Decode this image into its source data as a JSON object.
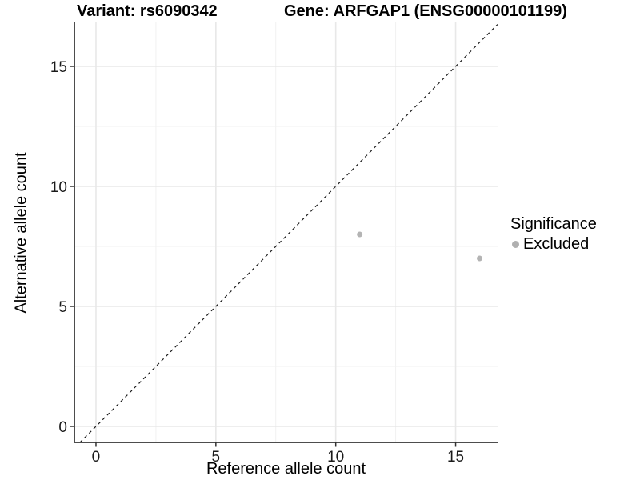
{
  "header": {
    "variant_title": "Variant: rs6090342",
    "gene_title": "Gene: ARFGAP1 (ENSG00000101199)"
  },
  "chart_data": {
    "type": "scatter",
    "title": "Variant: rs6090342   Gene: ARFGAP1 (ENSG00000101199)",
    "xlabel": "Reference allele count",
    "ylabel": "Alternative allele count",
    "xlim": [
      -0.9,
      16.75
    ],
    "ylim": [
      -0.667,
      16.833
    ],
    "xticks": [
      0,
      5,
      10,
      15
    ],
    "yticks": [
      0,
      5,
      10,
      15
    ],
    "minor_xticks": [
      2.5,
      7.5,
      12.5
    ],
    "minor_yticks": [
      2.5,
      7.5,
      12.5
    ],
    "grid": "major+minor",
    "identity_line": {
      "slope": 1,
      "intercept": 0,
      "style": "dashed",
      "color": "#1a1a1a"
    },
    "series": [
      {
        "name": "Excluded",
        "color": "#b4b4b4",
        "points": [
          {
            "x": 11,
            "y": 8
          },
          {
            "x": 16,
            "y": 7
          }
        ]
      }
    ],
    "legend": {
      "title": "Significance",
      "position": "right",
      "entries": [
        {
          "label": "Excluded",
          "color": "#b0b0b0"
        }
      ]
    }
  },
  "colors": {
    "background": "#ffffff",
    "grid_major": "#e8e8e8",
    "grid_minor": "#f1f1f1",
    "axis_line": "#4d4d4d",
    "tick_mark": "#333333",
    "tick_label": "#1a1a1a",
    "point": "#b4b4b4"
  }
}
